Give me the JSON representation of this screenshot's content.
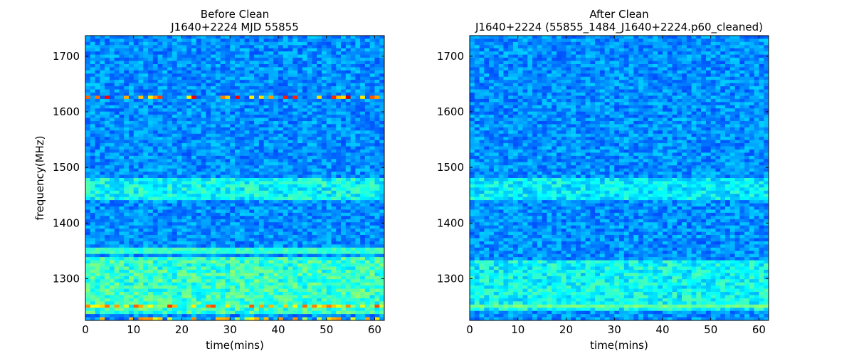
{
  "chart_data": [
    {
      "type": "heatmap",
      "title_line1": "Before Clean",
      "title_line2": "J1640+2224 MJD 55855",
      "xlabel": "time(mins)",
      "ylabel": "frequency(MHz)",
      "xlim": [
        0,
        62
      ],
      "ylim": [
        1225,
        1737
      ],
      "xticks": [
        "0",
        "10",
        "20",
        "30",
        "40",
        "50",
        "60"
      ],
      "yticks": [
        "1300",
        "1400",
        "1500",
        "1600",
        "1700"
      ],
      "colormap": "jet",
      "n_time_bins": 62,
      "n_freq_bins": 90,
      "bright_bands_MHz": [
        {
          "freq": 1625,
          "intensity": 0.85,
          "pattern": "intermittent"
        },
        {
          "freq": 1350,
          "intensity": 0.45,
          "pattern": "continuous"
        },
        {
          "freq": 1250,
          "intensity": 0.75,
          "pattern": "intermittent"
        },
        {
          "freq": 1230,
          "intensity": 0.7,
          "pattern": "intermittent"
        }
      ],
      "bright_regions": [
        {
          "freq_range": [
            1235,
            1340
          ],
          "level": 0.45
        },
        {
          "freq_range": [
            1440,
            1480
          ],
          "level": 0.4
        }
      ]
    },
    {
      "type": "heatmap",
      "title_line1": "After Clean",
      "title_line2": "J1640+2224  (55855_1484_J1640+2224.p60_cleaned)",
      "xlabel": "time(mins)",
      "ylabel": "",
      "xlim": [
        0,
        62
      ],
      "ylim": [
        1225,
        1737
      ],
      "xticks": [
        "0",
        "10",
        "20",
        "30",
        "40",
        "50",
        "60"
      ],
      "yticks": [
        "1300",
        "1400",
        "1500",
        "1600",
        "1700"
      ],
      "colormap": "jet",
      "n_time_bins": 62,
      "n_freq_bins": 90,
      "bright_bands_MHz": [
        {
          "freq": 1250,
          "intensity": 0.5,
          "pattern": "continuous"
        }
      ],
      "bright_regions": [
        {
          "freq_range": [
            1240,
            1335
          ],
          "level": 0.4
        },
        {
          "freq_range": [
            1440,
            1480
          ],
          "level": 0.38
        }
      ]
    }
  ]
}
